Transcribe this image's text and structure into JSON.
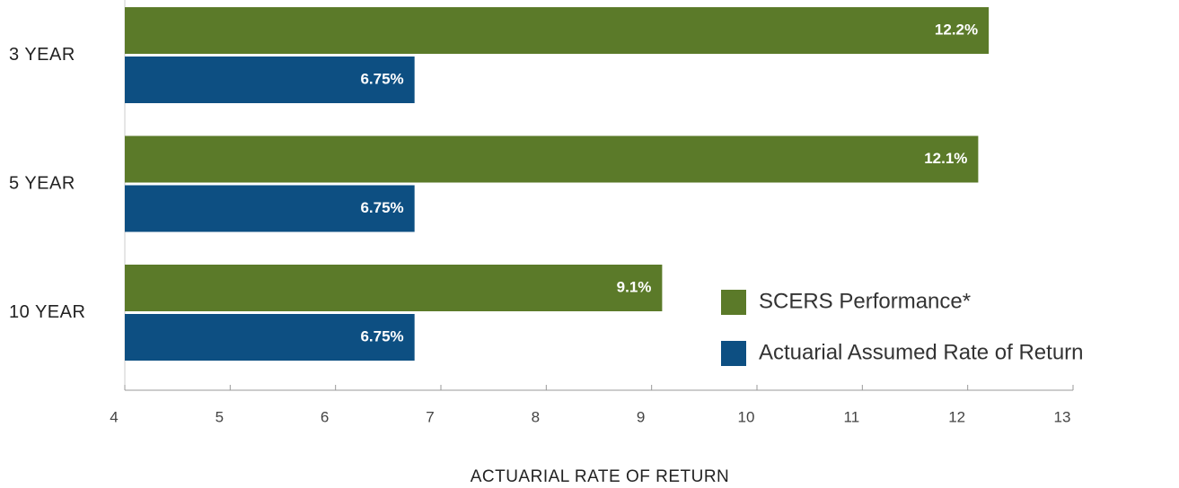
{
  "chart_data": {
    "type": "bar",
    "orientation": "horizontal",
    "x_label": "ACTUARIAL RATE OF RETURN",
    "categories": [
      "3 YEAR",
      "5 YEAR",
      "10 YEAR"
    ],
    "series": [
      {
        "name": "SCERS Performance*",
        "color": "#5b7a29",
        "values": [
          12.2,
          12.1,
          9.1
        ],
        "value_labels": [
          "12.2%",
          "12.1%",
          "9.1%"
        ]
      },
      {
        "name": "Actuarial Assumed Rate of Return",
        "color": "#0d4f82",
        "values": [
          6.75,
          6.75,
          6.75
        ],
        "value_labels": [
          "6.75%",
          "6.75%",
          "6.75%"
        ]
      }
    ],
    "xlim": [
      4,
      13
    ],
    "xticks": [
      4,
      5,
      6,
      7,
      8,
      9,
      10,
      11,
      12,
      13
    ]
  }
}
